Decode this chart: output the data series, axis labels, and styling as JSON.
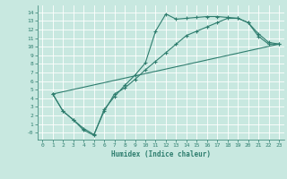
{
  "xlabel": "Humidex (Indice chaleur)",
  "ylabel": "",
  "bg_color": "#c8e8e0",
  "grid_color": "#ffffff",
  "line_color": "#2e7d6e",
  "xlim": [
    -0.5,
    23.5
  ],
  "ylim": [
    -0.8,
    14.8
  ],
  "xticks": [
    0,
    1,
    2,
    3,
    4,
    5,
    6,
    7,
    8,
    9,
    10,
    11,
    12,
    13,
    14,
    15,
    16,
    17,
    18,
    19,
    20,
    21,
    22,
    23
  ],
  "yticks": [
    0,
    1,
    2,
    3,
    4,
    5,
    6,
    7,
    8,
    9,
    10,
    11,
    12,
    13,
    14
  ],
  "line1_x": [
    1,
    2,
    3,
    4,
    5,
    6,
    7,
    8,
    9,
    10,
    11,
    12,
    13,
    14,
    15,
    16,
    17,
    18,
    19,
    20,
    21,
    22,
    23
  ],
  "line1_y": [
    4.5,
    2.5,
    1.5,
    0.3,
    -0.3,
    2.7,
    4.2,
    5.5,
    6.7,
    8.1,
    11.8,
    13.8,
    13.2,
    13.3,
    13.4,
    13.5,
    13.5,
    13.4,
    13.3,
    12.8,
    11.2,
    10.3,
    10.3
  ],
  "line2_x": [
    1,
    2,
    3,
    4,
    5,
    6,
    7,
    8,
    9,
    10,
    11,
    12,
    13,
    14,
    15,
    16,
    17,
    18,
    19,
    20,
    21,
    22,
    23
  ],
  "line2_y": [
    4.5,
    2.5,
    1.5,
    0.5,
    -0.2,
    2.5,
    4.5,
    5.2,
    6.2,
    7.3,
    8.3,
    9.3,
    10.3,
    11.3,
    11.8,
    12.3,
    12.8,
    13.3,
    13.3,
    12.8,
    11.5,
    10.5,
    10.3
  ],
  "line3_x": [
    1,
    23
  ],
  "line3_y": [
    4.5,
    10.3
  ]
}
